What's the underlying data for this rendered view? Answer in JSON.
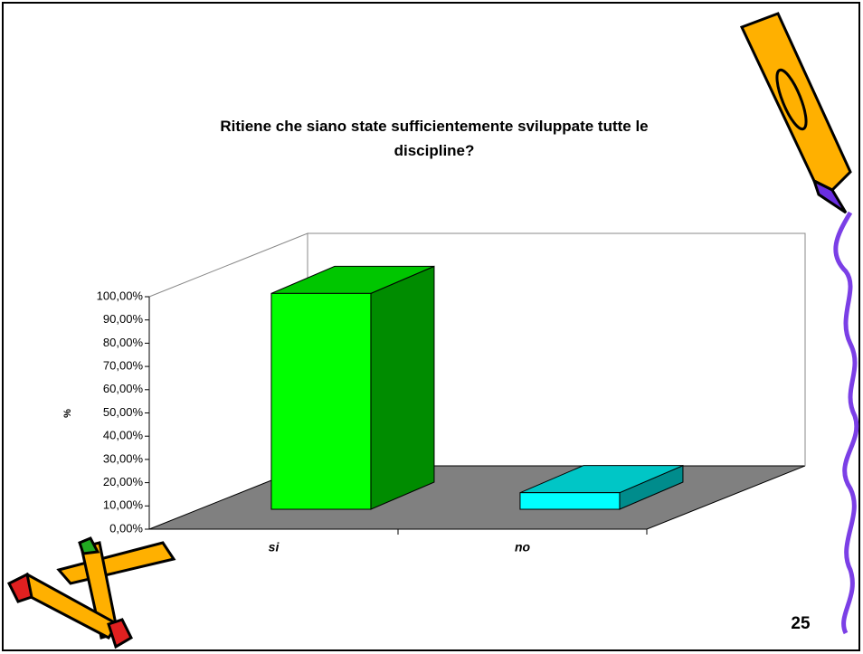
{
  "chart_data": {
    "type": "bar3d",
    "title": "Ritiene che siano state sufficientemente sviluppate tutte le discipline?",
    "y_label": "%",
    "categories": [
      "si",
      "no"
    ],
    "values": [
      92.86,
      7.14
    ],
    "colors": [
      "#00ff00",
      "#00ffff"
    ],
    "ylim": [
      0,
      100
    ],
    "yticks": [
      {
        "value": 0,
        "label": "0,00%"
      },
      {
        "value": 10,
        "label": "10,00%"
      },
      {
        "value": 20,
        "label": "20,00%"
      },
      {
        "value": 30,
        "label": "30,00%"
      },
      {
        "value": 40,
        "label": "40,00%"
      },
      {
        "value": 50,
        "label": "50,00%"
      },
      {
        "value": 60,
        "label": "60,00%"
      },
      {
        "value": 70,
        "label": "70,00%"
      },
      {
        "value": 80,
        "label": "80,00%"
      },
      {
        "value": 90,
        "label": "90,00%"
      },
      {
        "value": 100,
        "label": "100,00%"
      }
    ]
  },
  "slide": {
    "page_number": "25"
  }
}
